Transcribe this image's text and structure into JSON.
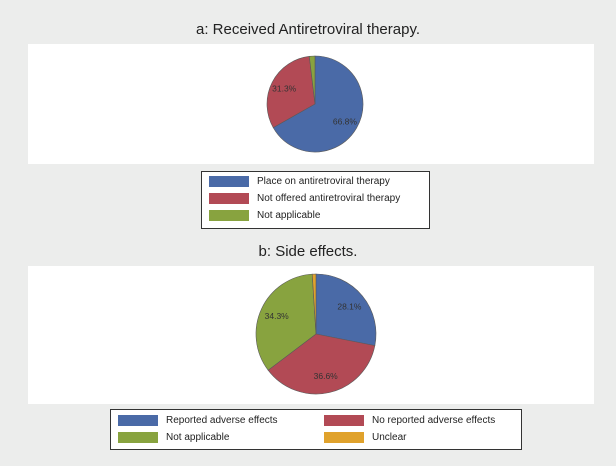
{
  "chart_data": [
    {
      "type": "pie",
      "title": "a: Received Antiretroviral therapy.",
      "slices": [
        {
          "label": "Place on antiretroviral therapy",
          "value": 66.8,
          "display": "66.8%",
          "color": "#4a6aa7"
        },
        {
          "label": "Not offered antiretroviral therapy",
          "value": 31.3,
          "display": "31.3%",
          "color": "#b24a55"
        },
        {
          "label": "Not applicable",
          "value": 1.9,
          "display": "",
          "color": "#88a33f"
        }
      ],
      "legend_position": "bottom"
    },
    {
      "type": "pie",
      "title": "b: Side effects.",
      "slices": [
        {
          "label": "Reported adverse effects",
          "value": 28.1,
          "display": "28.1%",
          "color": "#4a6aa7"
        },
        {
          "label": "No reported adverse effects",
          "value": 36.6,
          "display": "36.6%",
          "color": "#b24a55"
        },
        {
          "label": "Not applicable",
          "value": 34.3,
          "display": "34.3%",
          "color": "#88a33f"
        },
        {
          "label": "Unclear",
          "value": 1.0,
          "display": "",
          "color": "#e0a22c"
        }
      ],
      "legend_position": "bottom"
    }
  ]
}
